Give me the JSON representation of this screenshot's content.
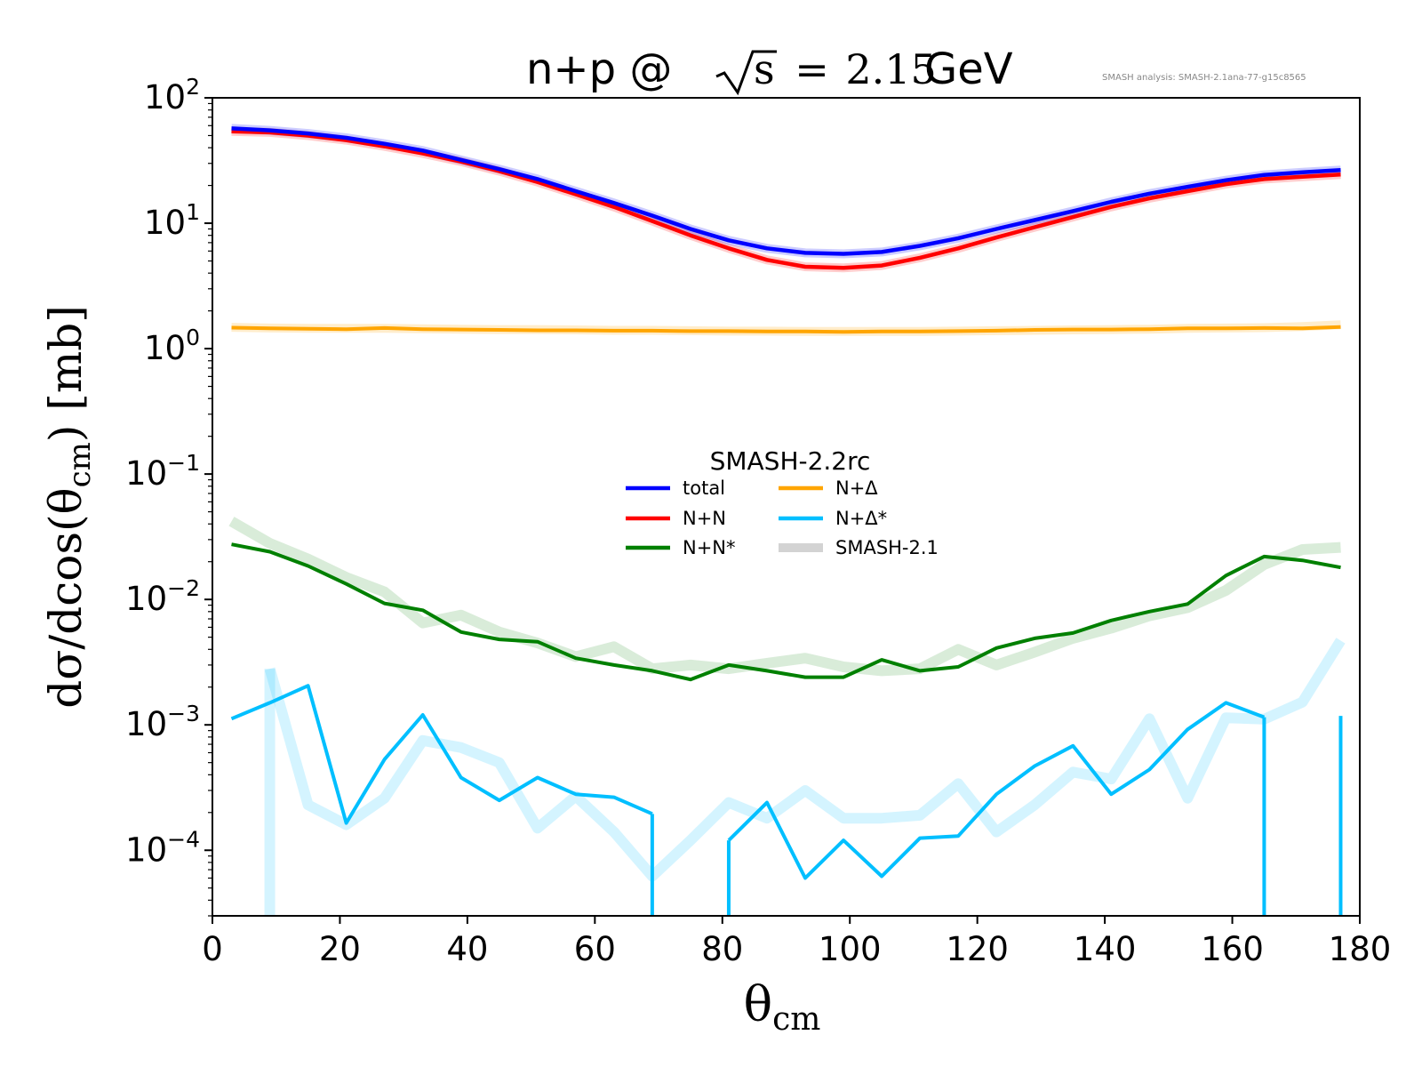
{
  "chart_data": {
    "type": "line",
    "title": {
      "prefix": "n+p @ ",
      "sqrt_arg": "s",
      "equals": "=",
      "value": "2.15",
      "unit": " GeV"
    },
    "version_note": "SMASH analysis: SMASH-2.1ana-77-g15c8565",
    "xlabel": {
      "base": "θ",
      "sub": "cm"
    },
    "ylabel": {
      "pre": "dσ/dcos(θ",
      "sub": "cm",
      "post": ") [mb]"
    },
    "y_scale": "log",
    "xlim": [
      0,
      180
    ],
    "ylim": [
      3e-05,
      100
    ],
    "x_ticks": [
      {
        "value": 0,
        "label": "0"
      },
      {
        "value": 20,
        "label": "20"
      },
      {
        "value": 40,
        "label": "40"
      },
      {
        "value": 60,
        "label": "60"
      },
      {
        "value": 80,
        "label": "80"
      },
      {
        "value": 100,
        "label": "100"
      },
      {
        "value": 120,
        "label": "120"
      },
      {
        "value": 140,
        "label": "140"
      },
      {
        "value": 160,
        "label": "160"
      },
      {
        "value": 180,
        "label": "180"
      }
    ],
    "y_ticks": [
      {
        "value": 100,
        "base": "10",
        "exp": "2"
      },
      {
        "value": 10,
        "base": "10",
        "exp": "1"
      },
      {
        "value": 1,
        "base": "10",
        "exp": "0"
      },
      {
        "value": 0.1,
        "base": "10",
        "exp": "−1"
      },
      {
        "value": 0.01,
        "base": "10",
        "exp": "−2"
      },
      {
        "value": 0.001,
        "base": "10",
        "exp": "−3"
      },
      {
        "value": 0.0001,
        "base": "10",
        "exp": "−4"
      }
    ],
    "grid": false,
    "legend": {
      "title": "SMASH-2.2rc",
      "placement": "center",
      "entries": [
        {
          "name": "total",
          "color": "#0000ff"
        },
        {
          "name": "N+N",
          "color": "#ff0000"
        },
        {
          "name": "N+N*",
          "color": "#008000"
        },
        {
          "name": "N+Δ",
          "color": "#ffa500"
        },
        {
          "name": "N+Δ*",
          "color": "#00bfff"
        },
        {
          "name": "SMASH-2.1",
          "color": "#d3d3d3"
        }
      ]
    },
    "x": [
      3,
      9,
      15,
      21,
      27,
      33,
      39,
      45,
      51,
      57,
      63,
      69,
      75,
      81,
      87,
      93,
      99,
      105,
      111,
      117,
      123,
      129,
      135,
      141,
      147,
      153,
      159,
      165,
      171,
      177
    ],
    "series": [
      {
        "name": "SMASH-2.1",
        "color": "#ff0000",
        "opacity": 0.2,
        "width": 10,
        "values": [
          54,
          53,
          50,
          46,
          41,
          36,
          31,
          26,
          21.3,
          17,
          13.5,
          10.4,
          8,
          6.3,
          5.1,
          4.5,
          4.4,
          4.6,
          5.3,
          6.3,
          7.7,
          9.3,
          11.2,
          13.5,
          15.8,
          18,
          20.5,
          22.5,
          23.5,
          24.5
        ]
      },
      {
        "name": "SMASH-2.1",
        "color": "#0000ff",
        "opacity": 0.2,
        "width": 10,
        "values": [
          57,
          55,
          52,
          48,
          43,
          38,
          32,
          27,
          22.5,
          18,
          14.5,
          11.5,
          9,
          7.3,
          6.3,
          5.8,
          5.7,
          5.9,
          6.6,
          7.6,
          9,
          10.6,
          12.5,
          14.8,
          17.2,
          19.5,
          22,
          24.3,
          25.5,
          26.5
        ]
      },
      {
        "name": "SMASH-2.1",
        "color": "#ffa500",
        "opacity": 0.2,
        "width": 10,
        "values": [
          1.48,
          1.46,
          1.45,
          1.45,
          1.45,
          1.44,
          1.43,
          1.42,
          1.42,
          1.41,
          1.4,
          1.4,
          1.39,
          1.38,
          1.38,
          1.37,
          1.37,
          1.37,
          1.37,
          1.38,
          1.39,
          1.4,
          1.41,
          1.42,
          1.43,
          1.45,
          1.46,
          1.47,
          1.5,
          1.55
        ]
      },
      {
        "name": "SMASH-2.1",
        "color": "#008000",
        "opacity": 0.15,
        "width": 12,
        "values": [
          0.042,
          0.028,
          0.021,
          0.015,
          0.0115,
          0.0065,
          0.0075,
          0.0055,
          0.0045,
          0.0035,
          0.0042,
          0.0028,
          0.003,
          0.0028,
          0.0031,
          0.0034,
          0.0029,
          0.0027,
          0.0028,
          0.004,
          0.003,
          0.0038,
          0.0049,
          0.0059,
          0.0074,
          0.0086,
          0.0118,
          0.019,
          0.025,
          0.026
        ]
      },
      {
        "name": "SMASH-2.1",
        "color": "#00bfff",
        "opacity": 0.17,
        "width": 12,
        "values": [
          null,
          0.0028,
          0.00023,
          0.00016,
          0.00026,
          0.00075,
          0.00066,
          0.0005,
          0.00015,
          0.00027,
          0.00014,
          6.2e-05,
          0.00012,
          0.00024,
          0.00018,
          0.0003,
          0.00018,
          0.00018,
          0.00019,
          0.00034,
          0.00014,
          0.00023,
          0.00042,
          0.00037,
          0.00112,
          0.00026,
          0.00114,
          0.00111,
          0.00152,
          0.0047
        ]
      },
      {
        "name": "N+Δ",
        "color": "#ffa500",
        "opacity": 1,
        "width": 4,
        "values": [
          1.47,
          1.45,
          1.44,
          1.43,
          1.46,
          1.43,
          1.42,
          1.41,
          1.4,
          1.4,
          1.39,
          1.39,
          1.38,
          1.38,
          1.37,
          1.37,
          1.36,
          1.37,
          1.37,
          1.38,
          1.39,
          1.41,
          1.42,
          1.42,
          1.43,
          1.45,
          1.45,
          1.46,
          1.45,
          1.49
        ]
      },
      {
        "name": "N+N",
        "color": "#ff0000",
        "opacity": 1,
        "width": 4.5,
        "values": [
          54,
          53,
          50,
          46,
          41,
          36,
          31,
          26,
          21.3,
          17,
          13.5,
          10.4,
          8,
          6.3,
          5.1,
          4.5,
          4.4,
          4.6,
          5.3,
          6.3,
          7.7,
          9.3,
          11.2,
          13.5,
          15.8,
          18,
          20.5,
          22.5,
          23.5,
          24.5
        ]
      },
      {
        "name": "total",
        "color": "#0000ff",
        "opacity": 1,
        "width": 4.5,
        "values": [
          57,
          55,
          52,
          48,
          43,
          38,
          32,
          27,
          22.5,
          18,
          14.5,
          11.5,
          9,
          7.3,
          6.3,
          5.8,
          5.7,
          5.9,
          6.6,
          7.6,
          9,
          10.6,
          12.5,
          14.8,
          17.2,
          19.5,
          22,
          24.3,
          25.5,
          26.5
        ]
      },
      {
        "name": "N+N*",
        "color": "#008000",
        "opacity": 1,
        "width": 4,
        "values": [
          0.0275,
          0.024,
          0.0185,
          0.0133,
          0.0093,
          0.0082,
          0.0055,
          0.0048,
          0.0046,
          0.0034,
          0.003,
          0.0027,
          0.0023,
          0.003,
          0.0027,
          0.0024,
          0.0024,
          0.0033,
          0.0027,
          0.0029,
          0.0041,
          0.0049,
          0.0054,
          0.0068,
          0.008,
          0.0092,
          0.0155,
          0.022,
          0.0205,
          0.018
        ]
      },
      {
        "name": "N+Δ*",
        "color": "#00bfff",
        "opacity": 1,
        "width": 4,
        "values": [
          0.00112,
          0.0015,
          0.00205,
          0.000165,
          0.00053,
          0.0012,
          0.00038,
          0.00025,
          0.00038,
          0.00028,
          0.000265,
          0.000195,
          null,
          0.00012,
          0.00024,
          6e-05,
          0.00012,
          6.2e-05,
          0.000125,
          0.00013,
          0.00028,
          0.00047,
          0.00068,
          0.00028,
          0.00044,
          0.00092,
          0.0015,
          0.00115,
          null,
          null
        ]
      }
    ]
  }
}
